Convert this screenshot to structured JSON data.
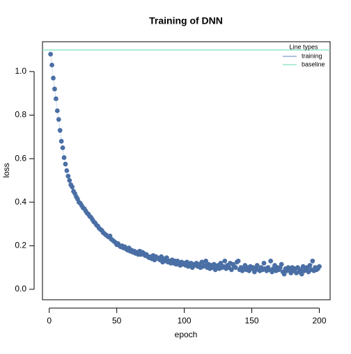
{
  "chart_data": {
    "type": "scatter",
    "title": "Training of DNN",
    "x_label": "epoch",
    "y_label": "loss",
    "x": [
      1,
      2,
      3,
      4,
      5,
      6,
      7,
      8,
      9,
      10,
      11,
      12,
      13,
      14,
      15,
      16,
      17,
      18,
      19,
      20,
      21,
      22,
      23,
      24,
      25,
      26,
      27,
      28,
      29,
      30,
      31,
      32,
      33,
      34,
      35,
      36,
      37,
      38,
      39,
      40,
      41,
      42,
      43,
      44,
      45,
      46,
      47,
      48,
      49,
      50,
      51,
      52,
      53,
      54,
      55,
      56,
      57,
      58,
      59,
      60,
      61,
      62,
      63,
      64,
      65,
      66,
      67,
      68,
      69,
      70,
      71,
      72,
      73,
      74,
      75,
      76,
      77,
      78,
      79,
      80,
      81,
      82,
      83,
      84,
      85,
      86,
      87,
      88,
      89,
      90,
      91,
      92,
      93,
      94,
      95,
      96,
      97,
      98,
      99,
      100,
      101,
      102,
      103,
      104,
      105,
      106,
      107,
      108,
      109,
      110,
      111,
      112,
      113,
      114,
      115,
      116,
      117,
      118,
      119,
      120,
      121,
      122,
      123,
      124,
      125,
      126,
      127,
      128,
      129,
      130,
      131,
      132,
      133,
      134,
      135,
      136,
      137,
      138,
      139,
      140,
      141,
      142,
      143,
      144,
      145,
      146,
      147,
      148,
      149,
      150,
      151,
      152,
      153,
      154,
      155,
      156,
      157,
      158,
      159,
      160,
      161,
      162,
      163,
      164,
      165,
      166,
      167,
      168,
      169,
      170,
      171,
      172,
      173,
      174,
      175,
      176,
      177,
      178,
      179,
      180,
      181,
      182,
      183,
      184,
      185,
      186,
      187,
      188,
      189,
      190,
      191,
      192,
      193,
      194,
      195,
      196,
      197,
      198,
      199,
      200
    ],
    "series": [
      {
        "name": "training",
        "color": "#4a6fa5",
        "line_color": "#7d9bd0",
        "values": [
          1.08,
          1.03,
          0.97,
          0.92,
          0.875,
          0.82,
          0.78,
          0.73,
          0.68,
          0.65,
          0.605,
          0.575,
          0.545,
          0.52,
          0.5,
          0.48,
          0.47,
          0.45,
          0.44,
          0.425,
          0.415,
          0.4,
          0.395,
          0.385,
          0.375,
          0.37,
          0.36,
          0.35,
          0.345,
          0.335,
          0.33,
          0.32,
          0.31,
          0.305,
          0.295,
          0.29,
          0.28,
          0.275,
          0.27,
          0.26,
          0.255,
          0.25,
          0.245,
          0.24,
          0.245,
          0.23,
          0.225,
          0.22,
          0.215,
          0.205,
          0.21,
          0.2,
          0.195,
          0.2,
          0.19,
          0.195,
          0.185,
          0.18,
          0.19,
          0.175,
          0.18,
          0.17,
          0.175,
          0.165,
          0.17,
          0.16,
          0.175,
          0.16,
          0.17,
          0.165,
          0.155,
          0.16,
          0.15,
          0.145,
          0.15,
          0.14,
          0.155,
          0.135,
          0.15,
          0.145,
          0.14,
          0.135,
          0.15,
          0.125,
          0.14,
          0.13,
          0.145,
          0.125,
          0.13,
          0.12,
          0.135,
          0.12,
          0.13,
          0.115,
          0.13,
          0.12,
          0.11,
          0.125,
          0.115,
          0.12,
          0.11,
          0.125,
          0.105,
          0.115,
          0.12,
          0.1,
          0.115,
          0.11,
          0.12,
          0.105,
          0.115,
          0.1,
          0.125,
          0.105,
          0.11,
          0.13,
          0.1,
          0.115,
          0.095,
          0.11,
          0.1,
          0.115,
          0.09,
          0.105,
          0.11,
          0.095,
          0.12,
          0.1,
          0.105,
          0.13,
          0.095,
          0.11,
          0.1,
          0.12,
          0.09,
          0.115,
          0.105,
          0.1,
          0.125,
          0.13,
          0.09,
          0.1,
          0.085,
          0.095,
          0.11,
          0.09,
          0.1,
          0.085,
          0.105,
          0.095,
          0.1,
          0.08,
          0.095,
          0.11,
          0.09,
          0.085,
          0.1,
          0.09,
          0.12,
          0.095,
          0.085,
          0.1,
          0.09,
          0.13,
          0.08,
          0.095,
          0.11,
          0.085,
          0.1,
          0.09,
          0.1,
          0.115,
          0.08,
          0.07,
          0.095,
          0.085,
          0.1,
          0.09,
          0.075,
          0.1,
          0.085,
          0.095,
          0.075,
          0.1,
          0.08,
          0.09,
          0.07,
          0.105,
          0.085,
          0.09,
          0.1,
          0.08,
          0.11,
          0.09,
          0.13,
          0.085,
          0.1,
          0.09,
          0.095,
          0.105
        ]
      }
    ],
    "baseline": {
      "name": "baseline",
      "value": 1.099,
      "color": "#7fe0c0"
    },
    "legend_title": "Line types",
    "legend": "topright",
    "xlim": [
      -5,
      208
    ],
    "ylim": [
      -0.048,
      1.137
    ],
    "xticks": [
      0,
      50,
      100,
      150,
      200
    ],
    "yticks": [
      {
        "value": 0,
        "label": "0.0"
      },
      {
        "value": 0.2,
        "label": "0.2"
      },
      {
        "value": 0.4,
        "label": "0.4"
      },
      {
        "value": 0.6,
        "label": "0.6"
      },
      {
        "value": 0.8,
        "label": "0.8"
      },
      {
        "value": 1,
        "label": "1.0"
      }
    ]
  }
}
